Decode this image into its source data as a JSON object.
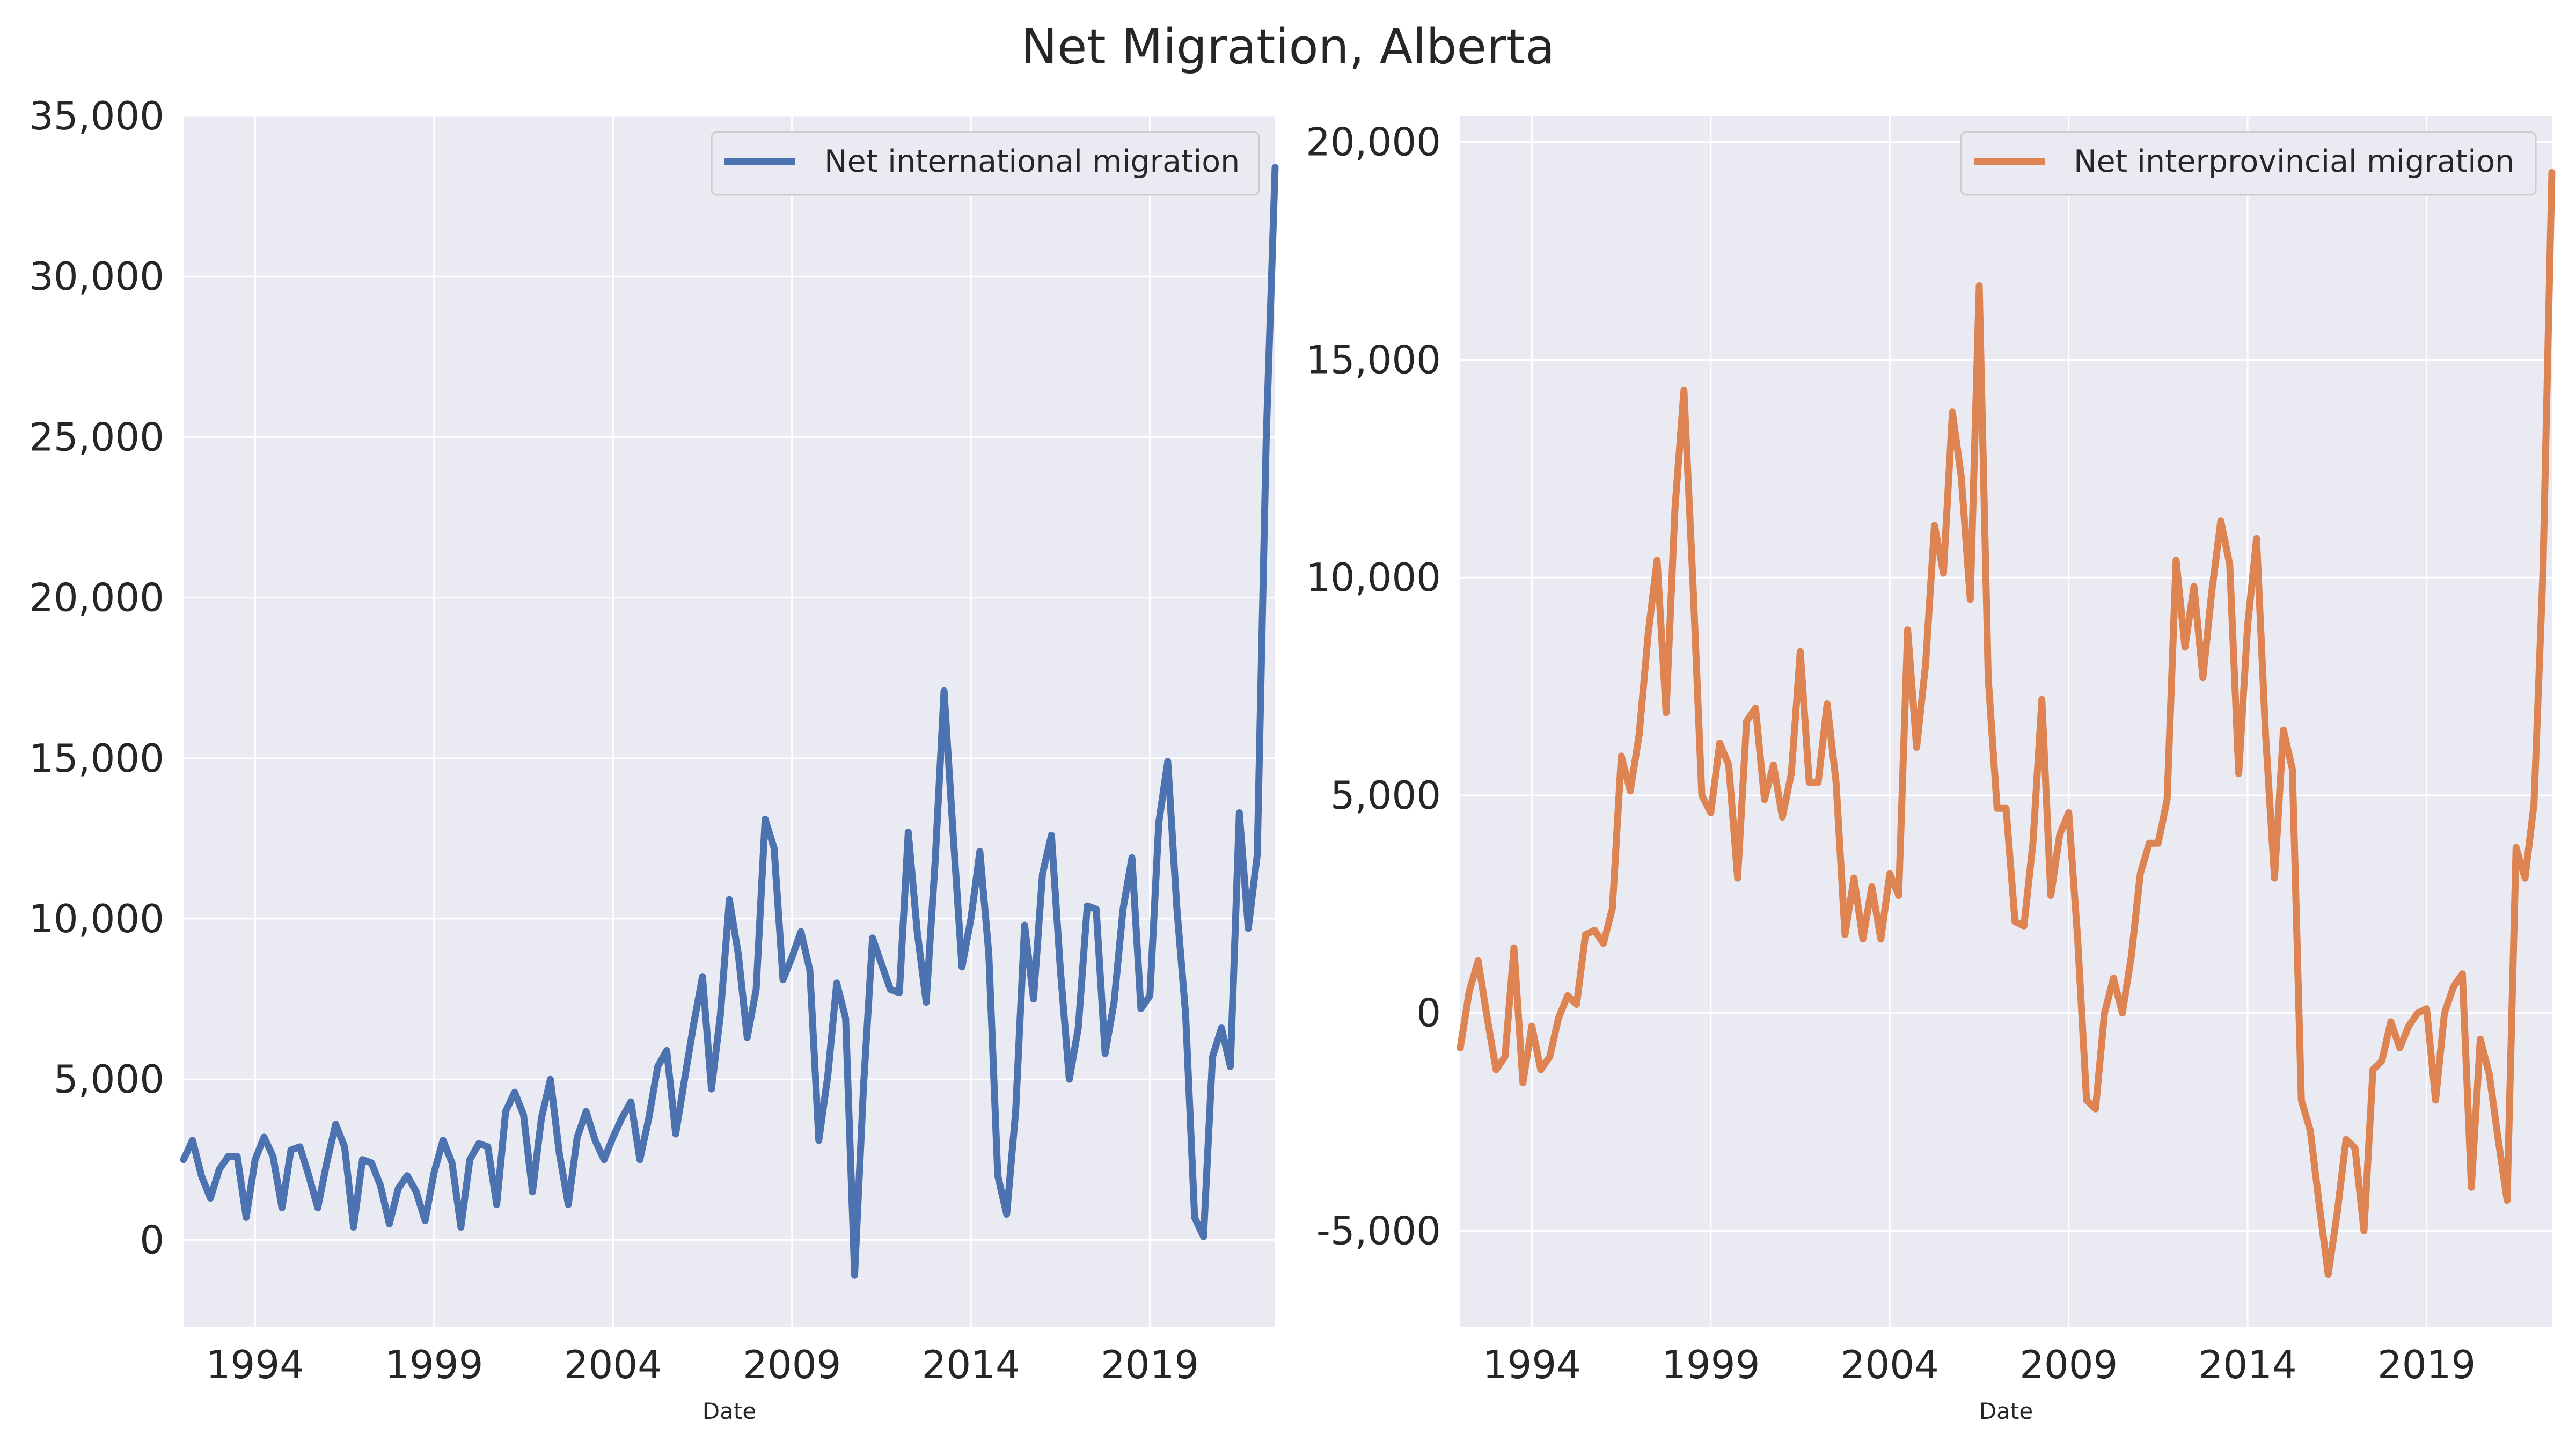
{
  "title": "Net Migration, Alberta",
  "chart_data": [
    {
      "type": "line",
      "xlabel": "Date",
      "ylabel": "",
      "x_ticks": [
        "1994",
        "1999",
        "2004",
        "2009",
        "2014",
        "2019"
      ],
      "x_tick_years": [
        1994,
        1999,
        2004,
        2009,
        2014,
        2019
      ],
      "xlim": [
        "1992-01-01",
        "2022-07-01"
      ],
      "ylim": [
        -2700,
        35000
      ],
      "y_ticks": [
        0,
        5000,
        10000,
        15000,
        20000,
        25000,
        30000,
        35000
      ],
      "y_tick_labels": [
        "0",
        "5,000",
        "10,000",
        "15,000",
        "20,000",
        "25,000",
        "30,000",
        "35,000"
      ],
      "grid": true,
      "legend_position": "top-right",
      "series": [
        {
          "name": "Net international migration",
          "color": "#4c72b0",
          "x": [
            "1992-01-01",
            "1992-04-01",
            "1992-07-01",
            "1992-10-01",
            "1993-01-01",
            "1993-04-01",
            "1993-07-01",
            "1993-10-01",
            "1994-01-01",
            "1994-04-01",
            "1994-07-01",
            "1994-10-01",
            "1995-01-01",
            "1995-04-01",
            "1995-07-01",
            "1995-10-01",
            "1996-01-01",
            "1996-04-01",
            "1996-07-01",
            "1996-10-01",
            "1997-01-01",
            "1997-04-01",
            "1997-07-01",
            "1997-10-01",
            "1998-01-01",
            "1998-04-01",
            "1998-07-01",
            "1998-10-01",
            "1999-01-01",
            "1999-04-01",
            "1999-07-01",
            "1999-10-01",
            "2000-01-01",
            "2000-04-01",
            "2000-07-01",
            "2000-10-01",
            "2001-01-01",
            "2001-04-01",
            "2001-07-01",
            "2001-10-01",
            "2002-01-01",
            "2002-04-01",
            "2002-07-01",
            "2002-10-01",
            "2003-01-01",
            "2003-04-01",
            "2003-07-01",
            "2003-10-01",
            "2004-01-01",
            "2004-04-01",
            "2004-07-01",
            "2004-10-01",
            "2005-01-01",
            "2005-04-01",
            "2005-07-01",
            "2005-10-01",
            "2006-01-01",
            "2006-04-01",
            "2006-07-01",
            "2006-10-01",
            "2007-01-01",
            "2007-04-01",
            "2007-07-01",
            "2007-10-01",
            "2008-01-01",
            "2008-04-01",
            "2008-07-01",
            "2008-10-01",
            "2009-01-01",
            "2009-04-01",
            "2009-07-01",
            "2009-10-01",
            "2010-01-01",
            "2010-04-01",
            "2010-07-01",
            "2010-10-01",
            "2011-01-01",
            "2011-04-01",
            "2011-07-01",
            "2011-10-01",
            "2012-01-01",
            "2012-04-01",
            "2012-07-01",
            "2012-10-01",
            "2013-01-01",
            "2013-04-01",
            "2013-07-01",
            "2013-10-01",
            "2014-01-01",
            "2014-04-01",
            "2014-07-01",
            "2014-10-01",
            "2015-01-01",
            "2015-04-01",
            "2015-07-01",
            "2015-10-01",
            "2016-01-01",
            "2016-04-01",
            "2016-07-01",
            "2016-10-01",
            "2017-01-01",
            "2017-04-01",
            "2017-07-01",
            "2017-10-01",
            "2018-01-01",
            "2018-04-01",
            "2018-07-01",
            "2018-10-01",
            "2019-01-01",
            "2019-04-01",
            "2019-07-01",
            "2019-10-01",
            "2020-01-01",
            "2020-04-01",
            "2020-07-01",
            "2020-10-01",
            "2021-01-01",
            "2021-04-01",
            "2021-07-01",
            "2021-10-01",
            "2022-01-01",
            "2022-04-01",
            "2022-07-01"
          ],
          "values": [
            2500,
            3100,
            2000,
            1300,
            2200,
            2600,
            2600,
            700,
            2500,
            3200,
            2600,
            1000,
            2800,
            2900,
            2000,
            1000,
            2400,
            3600,
            2900,
            400,
            2500,
            2400,
            1700,
            500,
            1600,
            2000,
            1500,
            600,
            2100,
            3100,
            2400,
            400,
            2500,
            3000,
            2900,
            1100,
            4000,
            4600,
            3900,
            1500,
            3800,
            5000,
            2700,
            1100,
            3200,
            4000,
            3100,
            2500,
            3200,
            3800,
            4300,
            2500,
            3800,
            5400,
            5900,
            3300,
            5000,
            6700,
            8200,
            4700,
            7000,
            10600,
            8900,
            6300,
            7800,
            13100,
            12200,
            8100,
            8800,
            9600,
            8400,
            3100,
            5100,
            8000,
            6900,
            -1100,
            4800,
            9400,
            8600,
            7800,
            7700,
            12700,
            9600,
            7400,
            11800,
            17100,
            12700,
            8500,
            10000,
            12100,
            8900,
            2000,
            800,
            4000,
            9800,
            7500,
            11400,
            12600,
            8400,
            5000,
            6600,
            10400,
            10300,
            5800,
            7400,
            10300,
            11900,
            7200,
            7600,
            13000,
            14900,
            10400,
            7000,
            700,
            100,
            5700,
            6600,
            5400,
            13300,
            9700,
            12000,
            24900,
            33400
          ]
        }
      ]
    },
    {
      "type": "line",
      "xlabel": "Date",
      "ylabel": "",
      "x_ticks": [
        "1994",
        "1999",
        "2004",
        "2009",
        "2014",
        "2019"
      ],
      "x_tick_years": [
        1994,
        1999,
        2004,
        2009,
        2014,
        2019
      ],
      "xlim": [
        "1992-01-01",
        "2022-07-01"
      ],
      "ylim": [
        -7200,
        20600
      ],
      "y_ticks": [
        -5000,
        0,
        5000,
        10000,
        15000,
        20000
      ],
      "y_tick_labels": [
        "-5,000",
        "0",
        "5,000",
        "10,000",
        "15,000",
        "20,000"
      ],
      "grid": true,
      "legend_position": "top-right",
      "series": [
        {
          "name": "Net interprovincial migration",
          "color": "#dd8452",
          "x": [
            "1992-01-01",
            "1992-04-01",
            "1992-07-01",
            "1992-10-01",
            "1993-01-01",
            "1993-04-01",
            "1993-07-01",
            "1993-10-01",
            "1994-01-01",
            "1994-04-01",
            "1994-07-01",
            "1994-10-01",
            "1995-01-01",
            "1995-04-01",
            "1995-07-01",
            "1995-10-01",
            "1996-01-01",
            "1996-04-01",
            "1996-07-01",
            "1996-10-01",
            "1997-01-01",
            "1997-04-01",
            "1997-07-01",
            "1997-10-01",
            "1998-01-01",
            "1998-04-01",
            "1998-07-01",
            "1998-10-01",
            "1999-01-01",
            "1999-04-01",
            "1999-07-01",
            "1999-10-01",
            "2000-01-01",
            "2000-04-01",
            "2000-07-01",
            "2000-10-01",
            "2001-01-01",
            "2001-04-01",
            "2001-07-01",
            "2001-10-01",
            "2002-01-01",
            "2002-04-01",
            "2002-07-01",
            "2002-10-01",
            "2003-01-01",
            "2003-04-01",
            "2003-07-01",
            "2003-10-01",
            "2004-01-01",
            "2004-04-01",
            "2004-07-01",
            "2004-10-01",
            "2005-01-01",
            "2005-04-01",
            "2005-07-01",
            "2005-10-01",
            "2006-01-01",
            "2006-04-01",
            "2006-07-01",
            "2006-10-01",
            "2007-01-01",
            "2007-04-01",
            "2007-07-01",
            "2007-10-01",
            "2008-01-01",
            "2008-04-01",
            "2008-07-01",
            "2008-10-01",
            "2009-01-01",
            "2009-04-01",
            "2009-07-01",
            "2009-10-01",
            "2010-01-01",
            "2010-04-01",
            "2010-07-01",
            "2010-10-01",
            "2011-01-01",
            "2011-04-01",
            "2011-07-01",
            "2011-10-01",
            "2012-01-01",
            "2012-04-01",
            "2012-07-01",
            "2012-10-01",
            "2013-01-01",
            "2013-04-01",
            "2013-07-01",
            "2013-10-01",
            "2014-01-01",
            "2014-04-01",
            "2014-07-01",
            "2014-10-01",
            "2015-01-01",
            "2015-04-01",
            "2015-07-01",
            "2015-10-01",
            "2016-01-01",
            "2016-04-01",
            "2016-07-01",
            "2016-10-01",
            "2017-01-01",
            "2017-04-01",
            "2017-07-01",
            "2017-10-01",
            "2018-01-01",
            "2018-04-01",
            "2018-07-01",
            "2018-10-01",
            "2019-01-01",
            "2019-04-01",
            "2019-07-01",
            "2019-10-01",
            "2020-01-01",
            "2020-04-01",
            "2020-07-01",
            "2020-10-01",
            "2021-01-01",
            "2021-04-01",
            "2021-07-01",
            "2021-10-01",
            "2022-01-01",
            "2022-04-01",
            "2022-07-01"
          ],
          "values": [
            -800,
            500,
            1200,
            -100,
            -1300,
            -1000,
            1500,
            -1600,
            -300,
            -1300,
            -1000,
            -100,
            400,
            200,
            1800,
            1900,
            1600,
            2400,
            5900,
            5100,
            6400,
            8700,
            10400,
            6900,
            11600,
            14300,
            9900,
            5000,
            4600,
            6200,
            5700,
            3100,
            6700,
            7000,
            4900,
            5700,
            4500,
            5500,
            8300,
            5300,
            5300,
            7100,
            5300,
            1800,
            3100,
            1700,
            2900,
            1700,
            3200,
            2700,
            8800,
            6100,
            8000,
            11200,
            10100,
            13800,
            12300,
            9500,
            16700,
            7700,
            4700,
            4700,
            2100,
            2000,
            3900,
            7200,
            2700,
            4100,
            4600,
            1700,
            -2000,
            -2200,
            0,
            800,
            0,
            1300,
            3200,
            3900,
            3900,
            4900,
            10400,
            8400,
            9800,
            7700,
            9700,
            11300,
            10300,
            5500,
            8900,
            10900,
            6400,
            3100,
            6500,
            5600,
            -2000,
            -2700,
            -4400,
            -6000,
            -4600,
            -2900,
            -3100,
            -5000,
            -1300,
            -1100,
            -200,
            -800,
            -300,
            0,
            100,
            -2000,
            0,
            600,
            900,
            -4000,
            -600,
            -1400,
            -2900,
            -4300,
            3800,
            3100,
            4800,
            10100,
            19300
          ]
        }
      ]
    }
  ]
}
